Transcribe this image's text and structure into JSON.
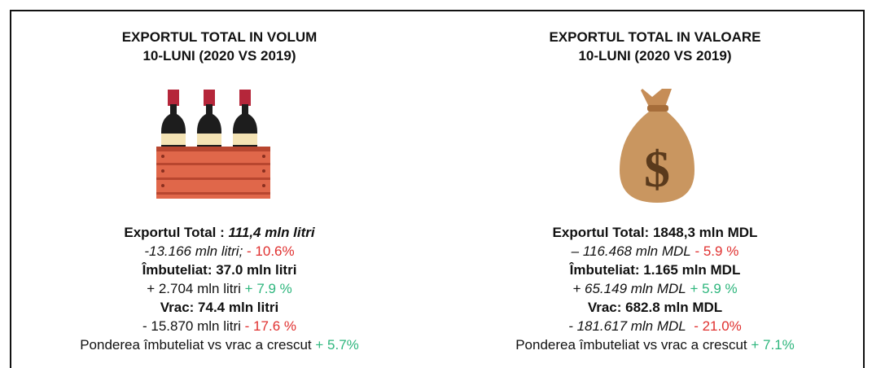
{
  "panels": [
    {
      "title": [
        "EXPORTUL TOTAL IN VOLUM",
        "10-LUNI (2020 VS 2019)"
      ],
      "lines": [
        [
          {
            "text": "Exportul Total : ",
            "kind": "bold"
          },
          {
            "text": "111,4 mln litri",
            "kind": "bold-italic"
          }
        ],
        [
          {
            "text": "-13.166 mln litri; ",
            "kind": "italic"
          },
          {
            "text": "- 10.6%",
            "kind": "red"
          }
        ],
        [
          {
            "text": "Îmbuteliat: 37.0 mln litri",
            "kind": "bold"
          }
        ],
        [
          {
            "text": "+ 2.704 mln litri ",
            "kind": "plain"
          },
          {
            "text": "+ 7.9 %",
            "kind": "green"
          }
        ],
        [
          {
            "text": "Vrac: 74.4 mln litri",
            "kind": "bold"
          }
        ],
        [
          {
            "text": "- 15.870 mln litri ",
            "kind": "plain"
          },
          {
            "text": "- 17.6 %",
            "kind": "red"
          }
        ],
        [
          {
            "text": "Ponderea îmbuteliat vs vrac a crescut ",
            "kind": "plain"
          },
          {
            "text": "+ 5.7%",
            "kind": "green"
          }
        ]
      ]
    },
    {
      "title": [
        "EXPORTUL TOTAL IN VALOARE",
        "10-LUNI (2020 VS 2019)"
      ],
      "lines": [
        [
          {
            "text": "Exportul Total: 1848,3 mln MDL",
            "kind": "bold"
          }
        ],
        [
          {
            "text": "– 116.468 mln MDL",
            "kind": "italic"
          },
          {
            "text": " - 5.9 %",
            "kind": "red"
          }
        ],
        [
          {
            "text": "Îmbuteliat: 1.165 mln MDL",
            "kind": "bold"
          }
        ],
        [
          {
            "text": "+ 65.149 mln MDL",
            "kind": "italic"
          },
          {
            "text": " + 5.9 %",
            "kind": "green"
          }
        ],
        [
          {
            "text": "Vrac: 682.8 mln MDL",
            "kind": "bold"
          }
        ],
        [
          {
            "text": "- 181.617 mln MDL",
            "kind": "italic"
          },
          {
            "text": "  - 21.0%",
            "kind": "red"
          }
        ],
        [
          {
            "text": "Ponderea îmbuteliat vs vrac a crescut ",
            "kind": "plain"
          },
          {
            "text": "+ 7.1%",
            "kind": "green"
          }
        ]
      ]
    }
  ]
}
